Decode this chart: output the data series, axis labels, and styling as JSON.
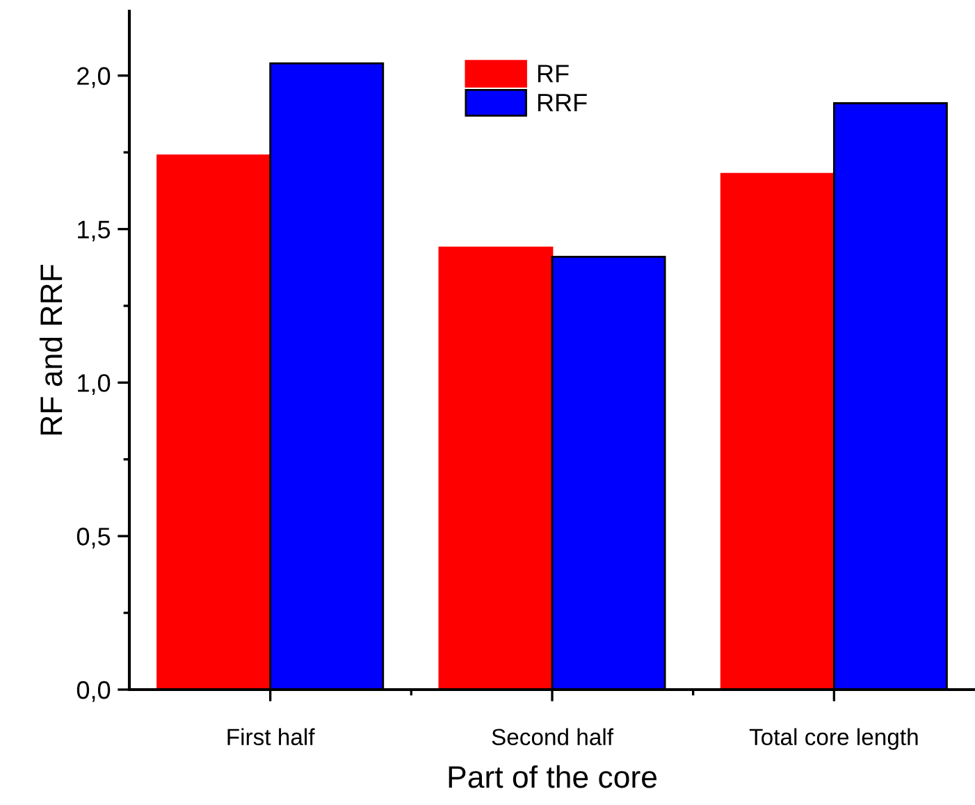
{
  "chart_data": {
    "type": "bar",
    "xlabel": "Part of the core",
    "ylabel": "RF and RRF",
    "categories": [
      "First half",
      "Second half",
      "Total core length"
    ],
    "series": [
      {
        "name": "RF",
        "color": "#ff0000",
        "values": [
          1.74,
          1.44,
          1.68
        ]
      },
      {
        "name": "RRF",
        "color": "#0000ff",
        "values": [
          2.04,
          1.41,
          1.91
        ]
      }
    ],
    "ylim": [
      0,
      2.21
    ],
    "yticks": [
      {
        "value": 0,
        "label": "0,0"
      },
      {
        "value": 0.5,
        "label": "0,5"
      },
      {
        "value": 1,
        "label": "1,0"
      },
      {
        "value": 1.5,
        "label": "1,5"
      },
      {
        "value": 2,
        "label": "2,0"
      }
    ],
    "legend": "top",
    "grid": false
  }
}
